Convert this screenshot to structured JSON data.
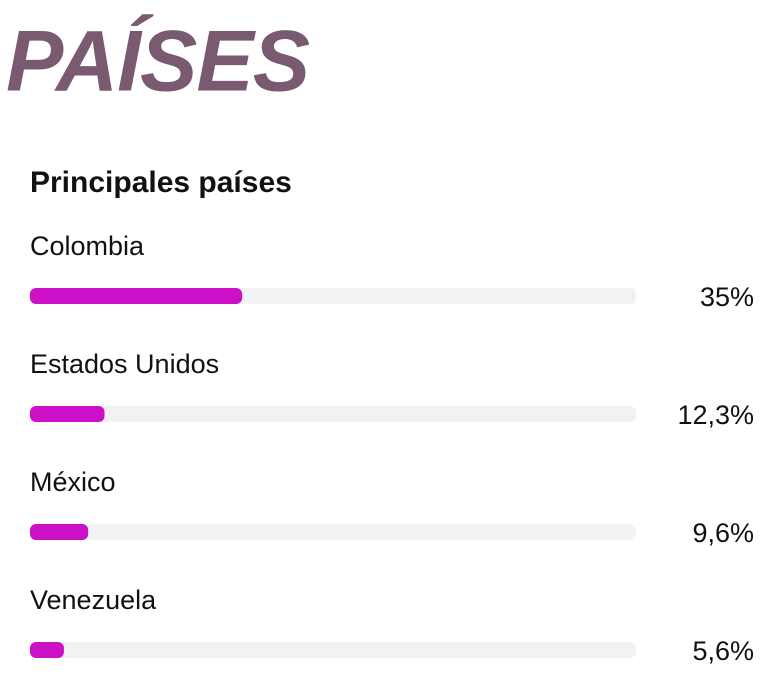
{
  "chart_data": {
    "type": "bar",
    "orientation": "horizontal",
    "title": "PAÍSES",
    "subtitle": "Principales países",
    "categories": [
      "Colombia",
      "Estados Unidos",
      "México",
      "Venezuela"
    ],
    "values": [
      35,
      12.3,
      9.6,
      5.6
    ],
    "value_labels": [
      "35%",
      "12,3%",
      "9,6%",
      "5,6%"
    ],
    "color": "#cc10c8",
    "track_color": "#f2f2f5",
    "title_color": "#7a5a70",
    "xlim": [
      0,
      100
    ]
  }
}
